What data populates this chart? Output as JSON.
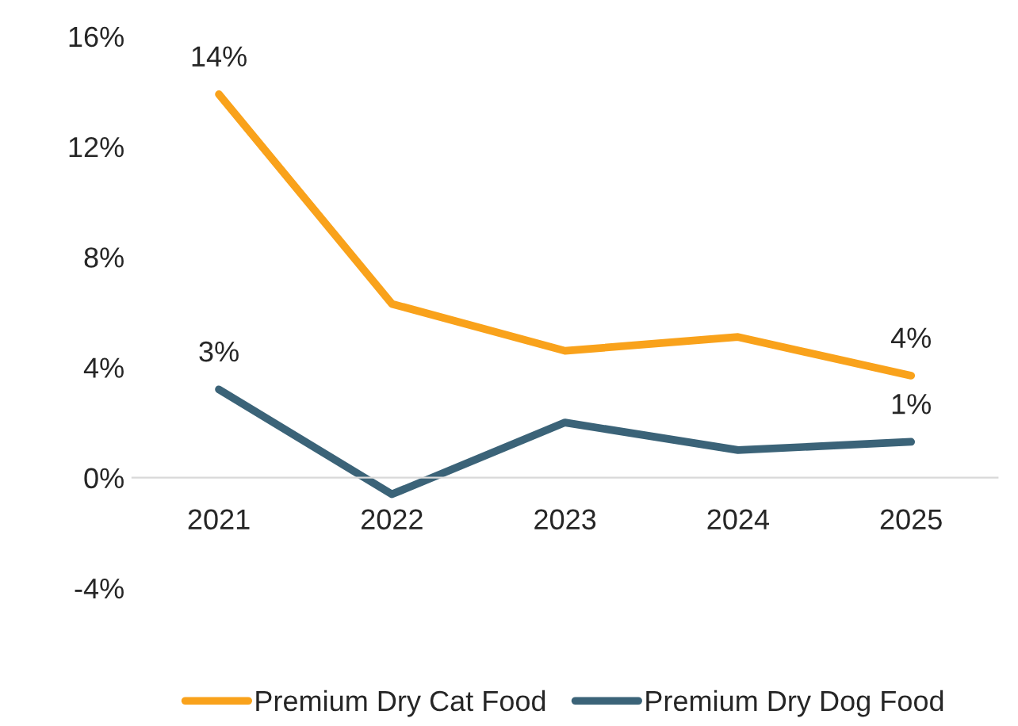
{
  "chart_data": {
    "type": "line",
    "categories": [
      "2021",
      "2022",
      "2023",
      "2024",
      "2025"
    ],
    "series": [
      {
        "name": "Premium Dry Cat Food",
        "color": "#f9a21b",
        "values": [
          13.9,
          6.3,
          4.6,
          5.1,
          3.7
        ],
        "value_labels": [
          "14%",
          null,
          null,
          null,
          "4%"
        ]
      },
      {
        "name": "Premium Dry Dog Food",
        "color": "#3b6378",
        "values": [
          3.2,
          -0.6,
          2.0,
          1.0,
          1.3
        ],
        "value_labels": [
          "3%",
          null,
          null,
          null,
          "1%"
        ]
      }
    ],
    "ylim": [
      -4,
      16
    ],
    "yticks": [
      {
        "value": -4,
        "label": "-4%"
      },
      {
        "value": 0,
        "label": "0%"
      },
      {
        "value": 4,
        "label": "4%"
      },
      {
        "value": 8,
        "label": "8%"
      },
      {
        "value": 12,
        "label": "12%"
      },
      {
        "value": 16,
        "label": "16%"
      }
    ],
    "legend": "bottom",
    "marker": "none",
    "line_style": "solid"
  }
}
